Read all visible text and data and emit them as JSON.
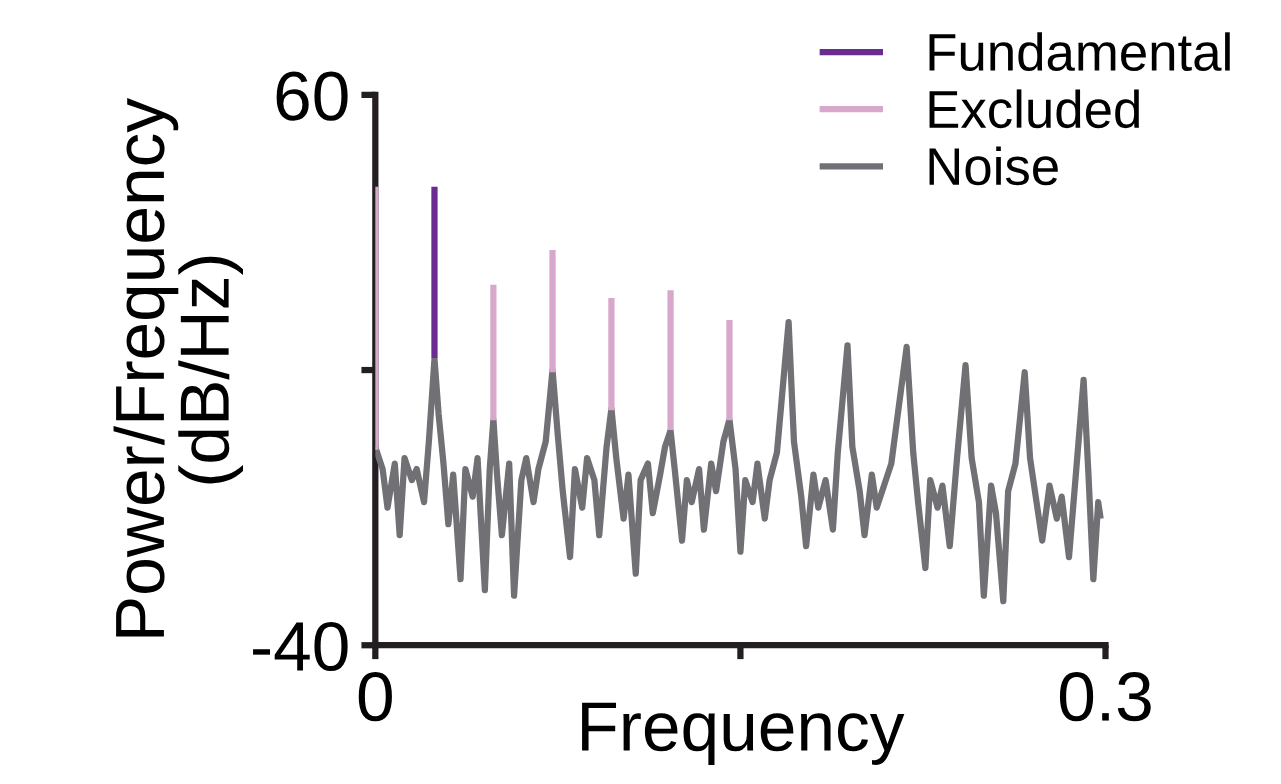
{
  "chart_data": {
    "type": "line",
    "xlabel": "Frequency",
    "ylabel": "Power/Frequency\n(dB/Hz)",
    "xlim": [
      0,
      0.3
    ],
    "ylim": [
      -40,
      60
    ],
    "xticks": [
      0,
      {
        "value": 0.15,
        "label": null
      },
      0.3
    ],
    "yticks": [
      -40,
      {
        "value": 10,
        "label": null
      },
      60
    ],
    "legend": "top right",
    "line_style": "solid",
    "series": [
      {
        "name": "Fundamental",
        "color": "#6a2c91",
        "x": [
          0.0243,
          0.0243
        ],
        "values": [
          12.2,
          43.3
        ]
      },
      {
        "name": "Excluded",
        "color": "#d8a8cc",
        "x": [
          0,
          0,
          0.0001,
          0.0485,
          0.0485,
          0.0486,
          0.0728,
          0.0728,
          0.0729,
          0.097,
          0.097,
          0.0971,
          0.1213,
          0.1213,
          0.1214,
          0.1455,
          0.1455
        ],
        "values": [
          43.3,
          -4.5,
          null,
          25.5,
          0.9,
          null,
          31.8,
          9.6,
          null,
          23.1,
          2.7,
          null,
          24.5,
          -0.9,
          null,
          19.1,
          0.9
        ]
      },
      {
        "name": "Noise",
        "color": "#707075",
        "x": [
          0.0,
          0.003,
          0.005,
          0.008,
          0.01,
          0.012,
          0.015,
          0.017,
          0.02,
          0.022,
          0.0243,
          0.026,
          0.028,
          0.03,
          0.032,
          0.035,
          0.037,
          0.04,
          0.042,
          0.045,
          0.047,
          0.0485,
          0.05,
          0.052,
          0.055,
          0.057,
          0.06,
          0.062,
          0.065,
          0.067,
          0.07,
          0.0728,
          0.075,
          0.077,
          0.08,
          0.082,
          0.085,
          0.087,
          0.09,
          0.092,
          0.095,
          0.097,
          0.099,
          0.102,
          0.104,
          0.107,
          0.109,
          0.112,
          0.114,
          0.117,
          0.119,
          0.1213,
          0.123,
          0.126,
          0.128,
          0.13,
          0.133,
          0.135,
          0.138,
          0.14,
          0.143,
          0.1455,
          0.148,
          0.15,
          0.152,
          0.155,
          0.157,
          0.16,
          0.162,
          0.165,
          0.1698,
          0.172,
          0.175,
          0.177,
          0.18,
          0.182,
          0.185,
          0.188,
          0.19,
          0.194,
          0.196,
          0.199,
          0.201,
          0.204,
          0.206,
          0.209,
          0.212,
          0.2183,
          0.221,
          0.223,
          0.226,
          0.228,
          0.231,
          0.233,
          0.236,
          0.239,
          0.2425,
          0.245,
          0.248,
          0.25,
          0.253,
          0.255,
          0.258,
          0.26,
          0.263,
          0.2668,
          0.269,
          0.272,
          0.274,
          0.277,
          0.28,
          0.282,
          0.285,
          0.288,
          0.291,
          0.293,
          0.295,
          0.297,
          0.298
        ],
        "values": [
          -4,
          -8,
          -15,
          -7,
          -20,
          -6,
          -10,
          -8,
          -14,
          -3,
          12,
          2,
          -7,
          -18,
          -9,
          -28,
          -8,
          -13,
          -6,
          -30,
          -8,
          1,
          -9,
          -20,
          -7,
          -31,
          -10,
          -6,
          -14,
          -8,
          -3,
          10,
          -2,
          -12,
          -24,
          -8,
          -15,
          -6,
          -10,
          -20,
          -4,
          3,
          -6,
          -17,
          -9,
          -27,
          -10,
          -7,
          -16,
          -9,
          -4,
          -1,
          -8,
          -21,
          -10,
          -14,
          -8,
          -19,
          -7,
          -12,
          -3,
          1,
          -8,
          -23,
          -10,
          -14,
          -7,
          -17,
          -10,
          -5,
          18.7,
          -3,
          -13,
          -22,
          -9,
          -15,
          -10,
          -19,
          -5,
          14.5,
          -4,
          -12,
          -20,
          -9,
          -15,
          -11,
          -7,
          14.2,
          -5,
          -14,
          -26,
          -10,
          -15,
          -11,
          -22,
          -6,
          10.9,
          -6,
          -14,
          -31,
          -11,
          -16,
          -32,
          -12,
          -7,
          9.6,
          -6,
          -15,
          -21,
          -11,
          -17,
          -13,
          -24,
          -8,
          8.2,
          -9,
          -28,
          -14,
          -17
        ]
      }
    ]
  }
}
